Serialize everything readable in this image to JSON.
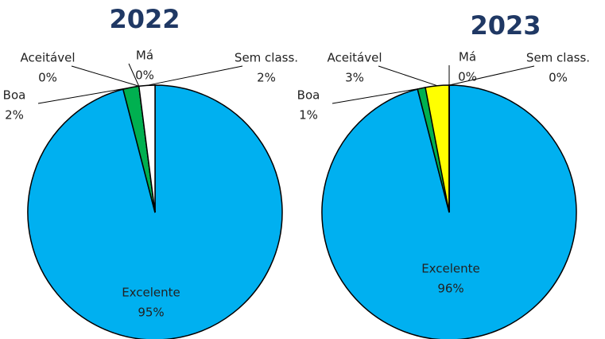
{
  "chart_data": [
    {
      "type": "pie",
      "title": "2022",
      "categories": [
        "Excelente",
        "Boa",
        "Aceitável",
        "Má",
        "Sem class."
      ],
      "values": [
        95,
        2,
        0,
        0,
        2
      ],
      "value_labels": [
        "95%",
        "2%",
        "0%",
        "0%",
        "2%"
      ],
      "colors": [
        "#00b0f0",
        "#00b050",
        "#ffff00",
        "#ff0000",
        "#ffffff"
      ]
    },
    {
      "type": "pie",
      "title": "2023",
      "categories": [
        "Excelente",
        "Boa",
        "Aceitável",
        "Má",
        "Sem class."
      ],
      "values": [
        96,
        1,
        3,
        0,
        0
      ],
      "value_labels": [
        "96%",
        "1%",
        "3%",
        "0%",
        "0%"
      ],
      "colors": [
        "#00b0f0",
        "#00b050",
        "#ffff00",
        "#ff0000",
        "#ffffff"
      ]
    }
  ]
}
